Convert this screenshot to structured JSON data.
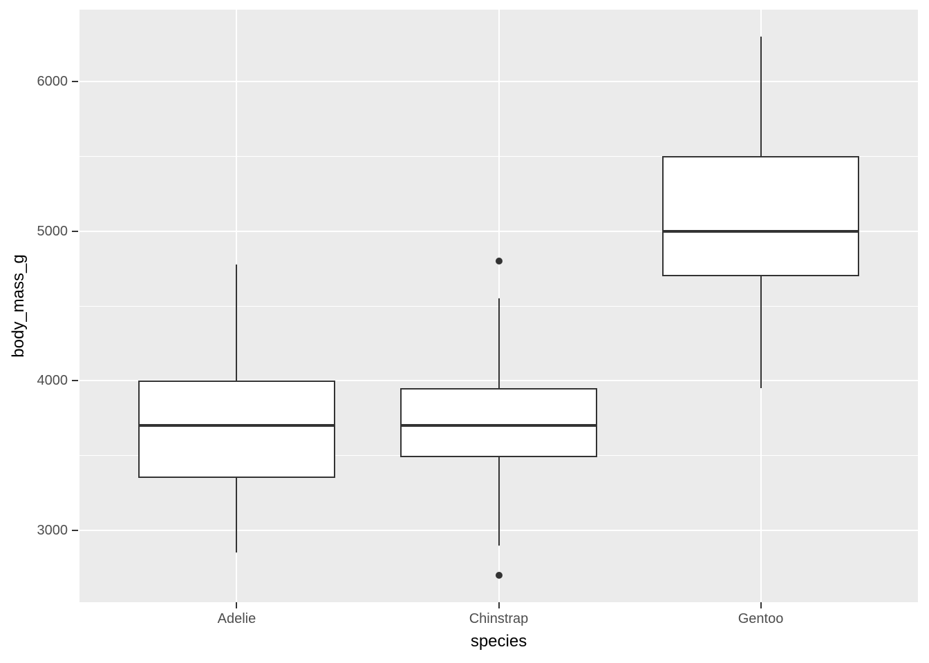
{
  "chart_data": {
    "type": "boxplot",
    "title": "",
    "xlabel": "species",
    "ylabel": "body_mass_g",
    "categories": [
      "Adelie",
      "Chinstrap",
      "Gentoo"
    ],
    "series": [
      {
        "name": "Adelie",
        "whisker_low": 2850,
        "q1": 3350,
        "median": 3700,
        "q3": 4000,
        "whisker_high": 4775,
        "outliers": []
      },
      {
        "name": "Chinstrap",
        "whisker_low": 2900,
        "q1": 3487.5,
        "median": 3700,
        "q3": 3950,
        "whisker_high": 4550,
        "outliers": [
          2700,
          4800
        ]
      },
      {
        "name": "Gentoo",
        "whisker_low": 3950,
        "q1": 4700,
        "median": 5000,
        "q3": 5500,
        "whisker_high": 6300,
        "outliers": []
      }
    ],
    "y_axis": {
      "tick_labels": [
        "3000",
        "4000",
        "5000",
        "6000"
      ],
      "ticks": [
        3000,
        4000,
        5000,
        6000
      ],
      "minor_gridlines": [
        3500,
        4500,
        5500
      ],
      "limits": [
        2520,
        6480
      ]
    },
    "x_axis": {
      "tick_labels": [
        "Adelie",
        "Chinstrap",
        "Gentoo"
      ]
    },
    "legend": "none",
    "grid": "on",
    "style": {
      "panel_background": "#EBEBEB",
      "gridline_color": "#FFFFFF",
      "box_fill": "#FFFFFF",
      "stroke_color": "#333333",
      "tick_label_color": "#4D4D4D",
      "axis_title_color": "#000000"
    }
  }
}
